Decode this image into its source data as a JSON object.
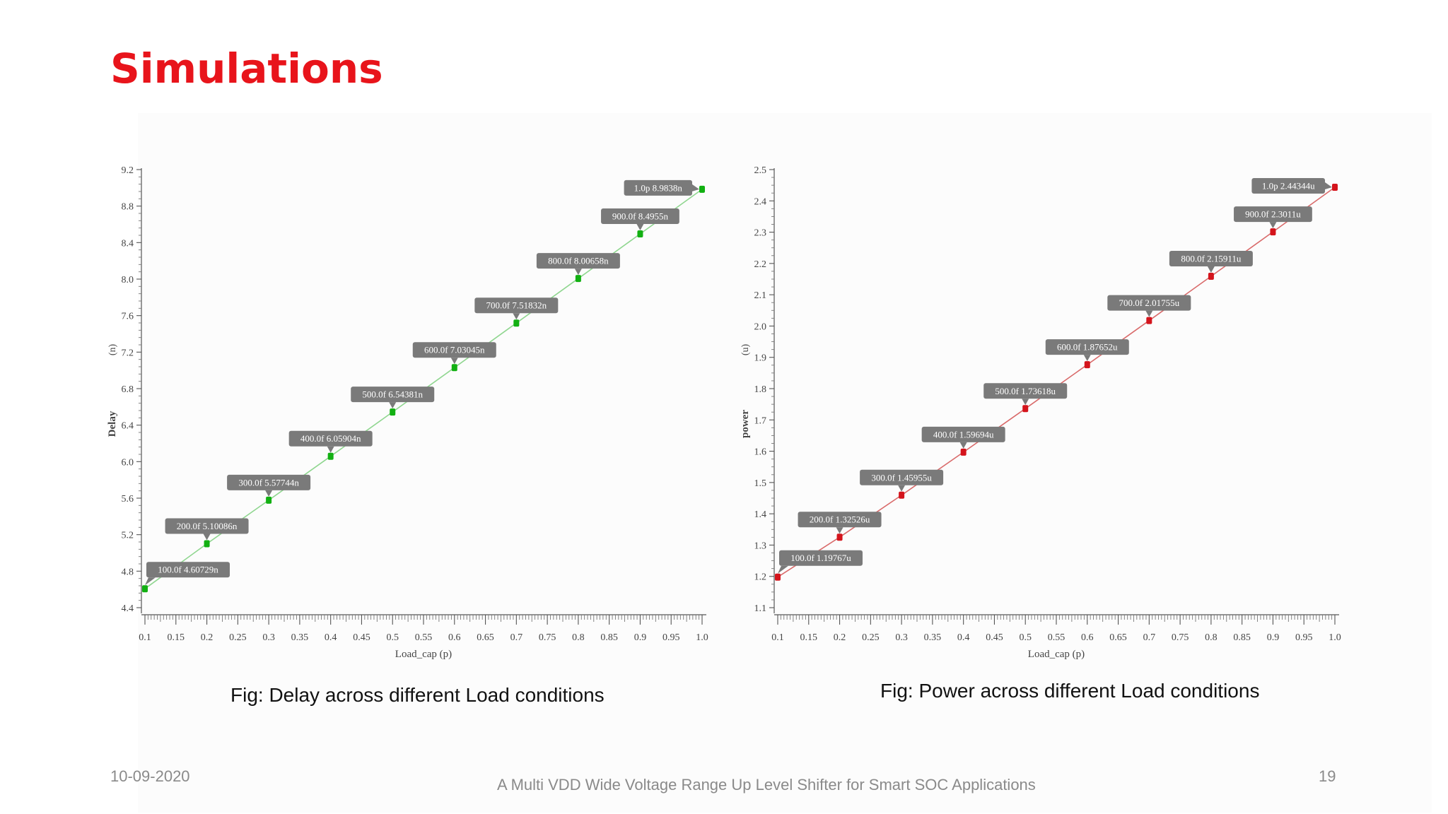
{
  "slide": {
    "title": "Simulations",
    "footer_date": "10-09-2020",
    "footer_title": "A Multi VDD Wide Voltage Range Up Level Shifter for Smart SOC Applications",
    "page_number": "19"
  },
  "colors": {
    "title": "#e8141b",
    "delay_line": "#8fd68f",
    "delay_marker": "#12b012",
    "power_line": "#d96a6a",
    "power_marker": "#d4141c",
    "tooltip_bg": "#7a7a7a"
  },
  "chart_data": [
    {
      "type": "line",
      "ylabel": "Delay",
      "yunit": "(n)",
      "xlabel": "Load_cap (p)",
      "caption": "Fig: Delay across different Load conditions",
      "x": [
        0.1,
        0.2,
        0.3,
        0.4,
        0.5,
        0.6,
        0.7,
        0.8,
        0.9,
        1.0
      ],
      "y": [
        4.60729,
        5.10086,
        5.57744,
        6.05904,
        6.54381,
        7.03045,
        7.51832,
        8.00658,
        8.4955,
        8.9838
      ],
      "point_labels": [
        "100.0f 4.60729n",
        "200.0f 5.10086n",
        "300.0f 5.57744n",
        "400.0f 6.05904n",
        "500.0f 6.54381n",
        "600.0f 7.03045n",
        "700.0f 7.51832n",
        "800.0f 8.00658n",
        "900.0f 8.4955n",
        "1.0p 8.9838n"
      ],
      "xlim": [
        0.1,
        1.0
      ],
      "ylim": [
        4.4,
        9.2
      ],
      "xticks": [
        "0.1",
        "0.15",
        "0.2",
        "0.25",
        "0.3",
        "0.35",
        "0.4",
        "0.45",
        "0.5",
        "0.55",
        "0.6",
        "0.65",
        "0.7",
        "0.75",
        "0.8",
        "0.85",
        "0.9",
        "0.95",
        "1.0"
      ],
      "yticks": [
        "4.4",
        "4.8",
        "5.2",
        "5.6",
        "6.0",
        "6.4",
        "6.8",
        "7.2",
        "7.6",
        "8.0",
        "8.4",
        "8.8",
        "9.2"
      ]
    },
    {
      "type": "line",
      "ylabel": "power",
      "yunit": "(u)",
      "xlabel": "Load_cap (p)",
      "caption": "Fig: Power across different Load conditions",
      "x": [
        0.1,
        0.2,
        0.3,
        0.4,
        0.5,
        0.6,
        0.7,
        0.8,
        0.9,
        1.0
      ],
      "y": [
        1.19767,
        1.32526,
        1.45955,
        1.59694,
        1.73618,
        1.87652,
        2.01755,
        2.15911,
        2.3011,
        2.44344
      ],
      "point_labels": [
        "100.0f 1.19767u",
        "200.0f 1.32526u",
        "300.0f 1.45955u",
        "400.0f 1.59694u",
        "500.0f 1.73618u",
        "600.0f 1.87652u",
        "700.0f 2.01755u",
        "800.0f 2.15911u",
        "900.0f 2.3011u",
        "1.0p 2.44344u"
      ],
      "xlim": [
        0.1,
        1.0
      ],
      "ylim": [
        1.1,
        2.5
      ],
      "xticks": [
        "0.1",
        "0.15",
        "0.2",
        "0.25",
        "0.3",
        "0.35",
        "0.4",
        "0.45",
        "0.5",
        "0.55",
        "0.6",
        "0.65",
        "0.7",
        "0.75",
        "0.8",
        "0.85",
        "0.9",
        "0.95",
        "1.0"
      ],
      "yticks": [
        "1.1",
        "1.2",
        "1.3",
        "1.4",
        "1.5",
        "1.6",
        "1.7",
        "1.8",
        "1.9",
        "2.0",
        "2.1",
        "2.2",
        "2.3",
        "2.4",
        "2.5"
      ]
    }
  ]
}
